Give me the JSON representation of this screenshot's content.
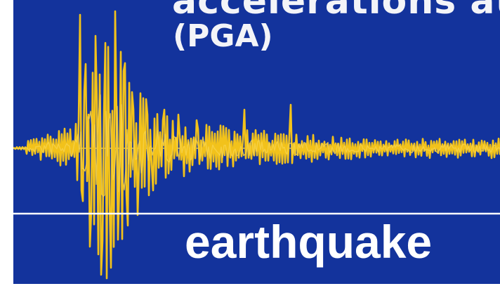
{
  "colors": {
    "background": "#13339c",
    "waveform": "#f2c21b",
    "baseline": "#ffffff",
    "text": "#ffffff"
  },
  "heading_fragment": "accelerations at",
  "pga_label": "(PGA)",
  "word_label": "earthquake",
  "waveform_icon": "seismogram-trace"
}
